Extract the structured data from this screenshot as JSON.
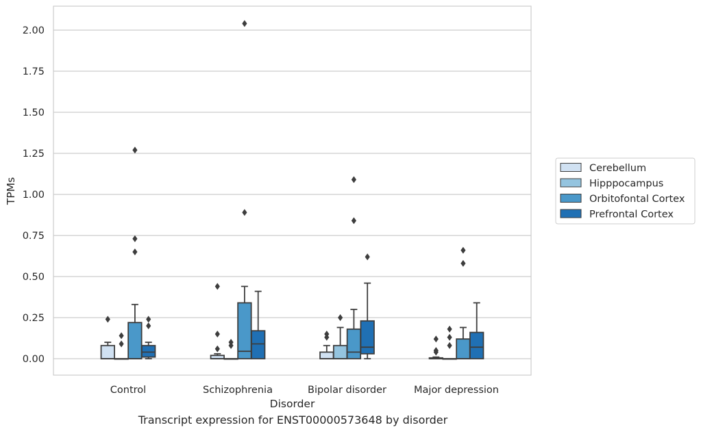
{
  "caption": "Transcript expression for ENST00000573648 by disorder",
  "chart_data": {
    "type": "boxplot",
    "xlabel": "Disorder",
    "ylabel": "TPMs",
    "ylim": [
      -0.1,
      2.15
    ],
    "yticks": [
      0.0,
      0.25,
      0.5,
      0.75,
      1.0,
      1.25,
      1.5,
      1.75,
      2.0
    ],
    "ytick_labels": [
      "0.00",
      "0.25",
      "0.50",
      "0.75",
      "1.00",
      "1.25",
      "1.50",
      "1.75",
      "2.00"
    ],
    "grid": "horizontal",
    "legend_position": "right",
    "categories": [
      "Control",
      "Schizophrenia",
      "Bipolar disorder",
      "Major depression"
    ],
    "series": [
      {
        "name": "Cerebellum",
        "color": "#d0e1f2",
        "boxes": [
          {
            "whisker_low": 0.0,
            "q1": 0.0,
            "median": 0.0,
            "q3": 0.08,
            "whisker_high": 0.1,
            "outliers": [
              0.24
            ]
          },
          {
            "whisker_low": 0.0,
            "q1": 0.0,
            "median": 0.0,
            "q3": 0.02,
            "whisker_high": 0.03,
            "outliers": [
              0.06,
              0.15,
              0.44
            ]
          },
          {
            "whisker_low": 0.0,
            "q1": 0.0,
            "median": 0.0,
            "q3": 0.04,
            "whisker_high": 0.08,
            "outliers": [
              0.13,
              0.15
            ]
          },
          {
            "whisker_low": 0.0,
            "q1": 0.0,
            "median": 0.0,
            "q3": 0.005,
            "whisker_high": 0.01,
            "outliers": [
              0.04,
              0.05,
              0.12
            ]
          }
        ]
      },
      {
        "name": "Hipppocampus",
        "color": "#94c4df",
        "boxes": [
          {
            "whisker_low": 0.0,
            "q1": 0.0,
            "median": 0.0,
            "q3": 0.0,
            "whisker_high": 0.0,
            "outliers": [
              0.09,
              0.14
            ]
          },
          {
            "whisker_low": 0.0,
            "q1": 0.0,
            "median": 0.0,
            "q3": 0.0,
            "whisker_high": 0.0,
            "outliers": [
              0.08,
              0.1
            ]
          },
          {
            "whisker_low": 0.0,
            "q1": 0.0,
            "median": 0.0,
            "q3": 0.08,
            "whisker_high": 0.19,
            "outliers": [
              0.25
            ]
          },
          {
            "whisker_low": 0.0,
            "q1": 0.0,
            "median": 0.0,
            "q3": 0.0,
            "whisker_high": 0.0,
            "outliers": [
              0.08,
              0.13,
              0.18
            ]
          }
        ]
      },
      {
        "name": "Orbitofontal Cortex",
        "color": "#4a98c9",
        "boxes": [
          {
            "whisker_low": 0.0,
            "q1": 0.0,
            "median": 0.0,
            "q3": 0.22,
            "whisker_high": 0.33,
            "outliers": [
              0.65,
              0.73,
              1.27
            ]
          },
          {
            "whisker_low": 0.0,
            "q1": 0.0,
            "median": 0.045,
            "q3": 0.34,
            "whisker_high": 0.44,
            "outliers": [
              0.89,
              2.04
            ]
          },
          {
            "whisker_low": 0.0,
            "q1": 0.0,
            "median": 0.04,
            "q3": 0.18,
            "whisker_high": 0.3,
            "outliers": [
              0.84,
              1.09
            ]
          },
          {
            "whisker_low": 0.0,
            "q1": 0.0,
            "median": 0.0,
            "q3": 0.12,
            "whisker_high": 0.19,
            "outliers": [
              0.58,
              0.66
            ]
          }
        ]
      },
      {
        "name": "Prefrontal Cortex",
        "color": "#2070b4",
        "boxes": [
          {
            "whisker_low": 0.0,
            "q1": 0.01,
            "median": 0.04,
            "q3": 0.08,
            "whisker_high": 0.1,
            "outliers": [
              0.2,
              0.24
            ]
          },
          {
            "whisker_low": 0.0,
            "q1": 0.0,
            "median": 0.09,
            "q3": 0.17,
            "whisker_high": 0.41,
            "outliers": []
          },
          {
            "whisker_low": 0.0,
            "q1": 0.03,
            "median": 0.07,
            "q3": 0.23,
            "whisker_high": 0.46,
            "outliers": [
              0.62
            ]
          },
          {
            "whisker_low": 0.0,
            "q1": 0.0,
            "median": 0.07,
            "q3": 0.16,
            "whisker_high": 0.34,
            "outliers": []
          }
        ]
      }
    ]
  }
}
